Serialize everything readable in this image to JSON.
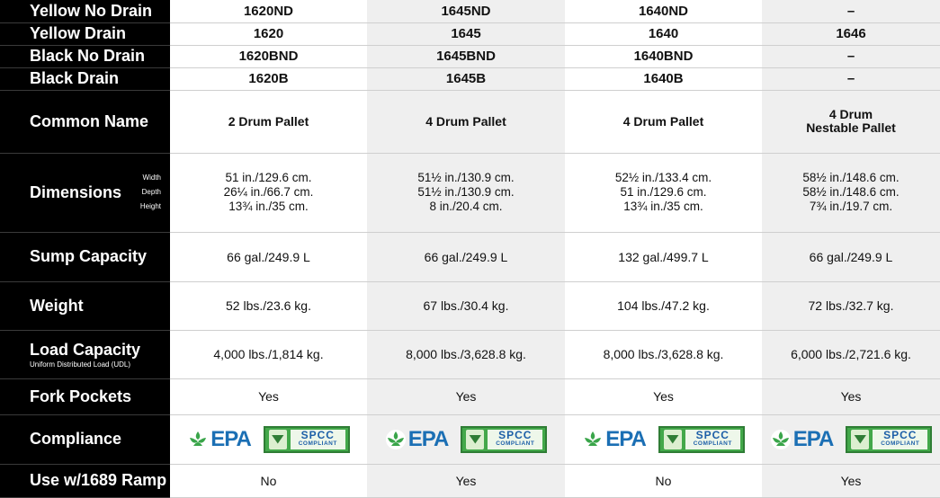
{
  "col_shading": [
    "white",
    "grey",
    "white",
    "grey"
  ],
  "rows": {
    "yellow_no_drain": {
      "label": "Yellow No Drain",
      "values": [
        "1620ND",
        "1645ND",
        "1640ND",
        "–"
      ]
    },
    "yellow_drain": {
      "label": "Yellow Drain",
      "values": [
        "1620",
        "1645",
        "1640",
        "1646"
      ]
    },
    "black_no_drain": {
      "label": "Black No Drain",
      "values": [
        "1620BND",
        "1645BND",
        "1640BND",
        "–"
      ]
    },
    "black_drain": {
      "label": "Black Drain",
      "values": [
        "1620B",
        "1645B",
        "1640B",
        "–"
      ]
    },
    "common_name": {
      "label": "Common Name",
      "values": [
        [
          "2 Drum Pallet"
        ],
        [
          "4 Drum Pallet"
        ],
        [
          "4 Drum Pallet"
        ],
        [
          "4 Drum",
          "Nestable Pallet"
        ]
      ]
    },
    "dimensions": {
      "label": "Dimensions",
      "sublabels": [
        "Width",
        "Depth",
        "Height"
      ],
      "values": [
        [
          "51 in./129.6 cm.",
          "26¼ in./66.7 cm.",
          "13¾ in./35 cm."
        ],
        [
          "51½ in./130.9 cm.",
          "51½ in./130.9 cm.",
          "8 in./20.4 cm."
        ],
        [
          "52½ in./133.4 cm.",
          "51 in./129.6 cm.",
          "13¾ in./35 cm."
        ],
        [
          "58½ in./148.6 cm.",
          "58½ in./148.6 cm.",
          "7¾ in./19.7 cm."
        ]
      ]
    },
    "sump_capacity": {
      "label": "Sump Capacity",
      "values": [
        "66 gal./249.9 L",
        "66 gal./249.9 L",
        "132 gal./499.7 L",
        "66 gal./249.9 L"
      ]
    },
    "weight": {
      "label": "Weight",
      "values": [
        "52 lbs./23.6 kg.",
        "67 lbs./30.4 kg.",
        "104 lbs./47.2 kg.",
        "72 lbs./32.7 kg."
      ]
    },
    "load_capacity": {
      "label": "Load Capacity",
      "sublabel": "Uniform Distributed Load (UDL)",
      "values": [
        "4,000 lbs./1,814 kg.",
        "8,000 lbs./3,628.8 kg.",
        "8,000 lbs./3,628.8 kg.",
        "6,000 lbs./2,721.6 kg."
      ]
    },
    "fork_pockets": {
      "label": "Fork Pockets",
      "values": [
        "Yes",
        "Yes",
        "Yes",
        "Yes"
      ]
    },
    "compliance": {
      "label": "Compliance",
      "epa_text": "EPA",
      "spcc_line1": "SPCC",
      "spcc_line2": "COMPLIANT",
      "epa_color": "#1b6fb4",
      "spcc_color": "#43a84a"
    },
    "ramp": {
      "label": "Use w/1689 Ramp",
      "values": [
        "No",
        "Yes",
        "No",
        "Yes"
      ]
    }
  }
}
